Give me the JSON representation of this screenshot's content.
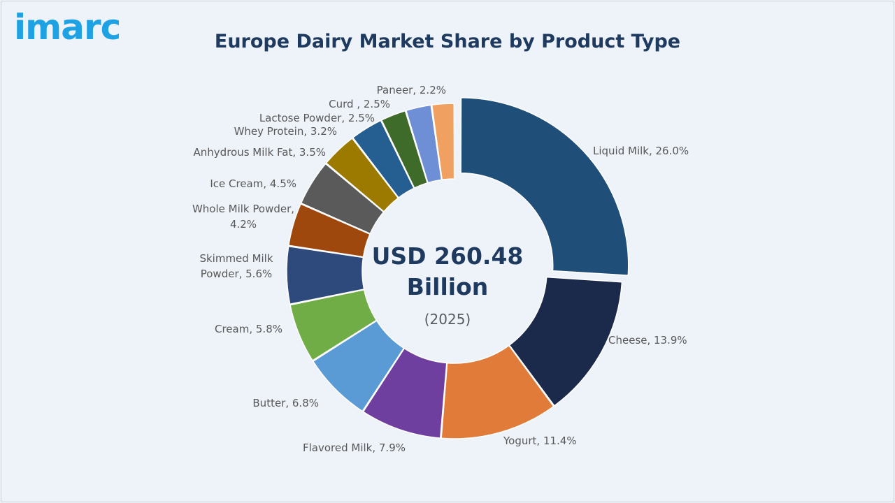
{
  "brand": {
    "logo_text": "imarc",
    "accent": "#1ea2e3"
  },
  "chart_data": {
    "type": "pie",
    "title": "Europe Dairy Market Share by Product Type",
    "center_text": [
      "USD 260.48",
      "Billion"
    ],
    "center_subtext": "(2025)",
    "unit": "%",
    "slices": [
      {
        "label": "Liquid Milk, 26.0%",
        "value": 26.0,
        "color": "#1f4e79",
        "exploded": true
      },
      {
        "label": "Cheese, 13.9%",
        "value": 13.9,
        "color": "#1b2a4a"
      },
      {
        "label": "Yogurt, 11.4%",
        "value": 11.4,
        "color": "#e07b39"
      },
      {
        "label": "Flavored Milk, 7.9%",
        "value": 7.9,
        "color": "#6f3fa0"
      },
      {
        "label": "Butter, 6.8%",
        "value": 6.8,
        "color": "#5b9bd5"
      },
      {
        "label": "Cream, 5.8%",
        "value": 5.8,
        "color": "#70ad47"
      },
      {
        "label": [
          "Skimmed Milk",
          "Powder, 5.6%"
        ],
        "value": 5.6,
        "color": "#2e4a7d"
      },
      {
        "label": [
          "Whole Milk Powder,",
          "4.2%"
        ],
        "value": 4.2,
        "color": "#9e480e"
      },
      {
        "label": "Ice Cream, 4.5%",
        "value": 4.5,
        "color": "#5a5a5a"
      },
      {
        "label": "Anhydrous Milk Fat, 3.5%",
        "value": 3.5,
        "color": "#9c7a00"
      },
      {
        "label": "Whey Protein, 3.2%",
        "value": 3.2,
        "color": "#255e91"
      },
      {
        "label": "Lactose Powder, 2.5%",
        "value": 2.5,
        "color": "#3f6b2a"
      },
      {
        "label": "Curd , 2.5%",
        "value": 2.5,
        "color": "#6e8fd6"
      },
      {
        "label": "Paneer, 2.2%",
        "value": 2.2,
        "color": "#f0a060"
      }
    ]
  }
}
